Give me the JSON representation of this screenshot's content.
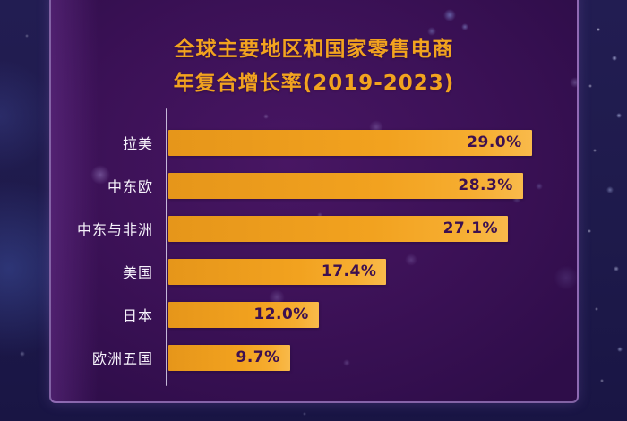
{
  "title": {
    "line1": "全球主要地区和国家零售电商",
    "line2": "年复合增长率(2019-2023)"
  },
  "chart_data": {
    "type": "bar",
    "orientation": "horizontal",
    "title": "全球主要地区和国家零售电商年复合增长率(2019-2023)",
    "categories": [
      "拉美",
      "中东欧",
      "中东与非洲",
      "美国",
      "日本",
      "欧洲五国"
    ],
    "values": [
      29.0,
      28.3,
      27.1,
      17.4,
      12.0,
      9.7
    ],
    "value_labels": [
      "29.0%",
      "28.3%",
      "27.1%",
      "17.4%",
      "12.0%",
      "9.7%"
    ],
    "unit": "%",
    "xlabel": "",
    "ylabel": "",
    "xlim": [
      0,
      32.6
    ],
    "grid": false,
    "legend_position": "none",
    "colors": {
      "bar": "#f2a21f",
      "bar_gradient_end": "#f9ba4b",
      "value_text": "#3c1050",
      "category_text": "#f6f2fb",
      "title_text": "#f2a31f",
      "axis_line": "#ded6f0",
      "panel_background": "#3f1257",
      "outer_background": "#1e1a4b"
    }
  }
}
